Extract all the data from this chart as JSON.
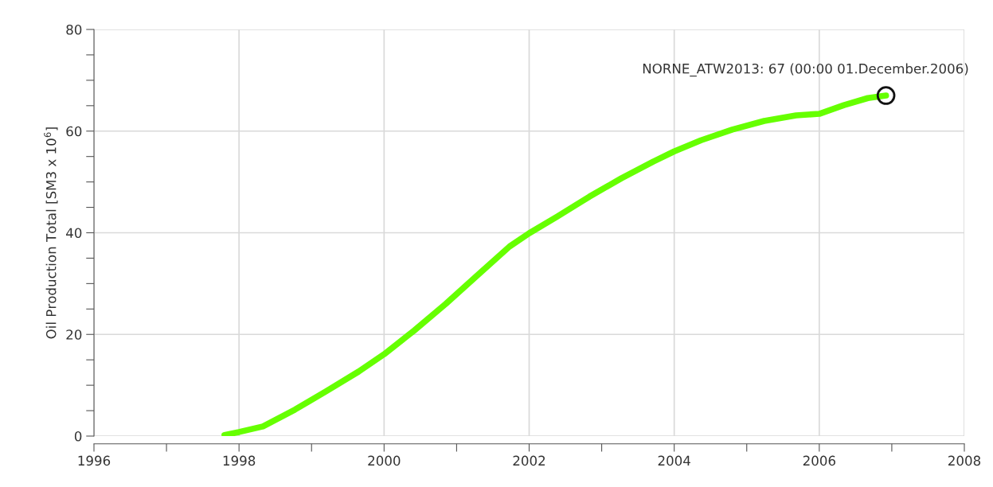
{
  "chart_data": {
    "type": "line",
    "ylabel": "Oil Production Total [SM3 x 10$^{6}$]",
    "x": [
      1997.8,
      1998.0,
      1998.33,
      1998.77,
      1999.2,
      1999.65,
      2000.0,
      2000.41,
      2000.85,
      2001.3,
      2001.73,
      2002.0,
      2002.39,
      2002.83,
      2003.27,
      2003.71,
      2004.0,
      2004.37,
      2004.8,
      2005.24,
      2005.68,
      2006.0,
      2006.34,
      2006.67,
      2006.92
    ],
    "series": [
      {
        "color": "#66ff00",
        "values": [
          0.2,
          0.8,
          1.9,
          5.2,
          8.8,
          12.7,
          16.1,
          20.7,
          26.0,
          31.8,
          37.3,
          39.9,
          43.2,
          47.1,
          50.7,
          54.0,
          56.0,
          58.2,
          60.3,
          62.0,
          63.1,
          63.4,
          65.1,
          66.5,
          67.0
        ]
      }
    ],
    "xlim": [
      1996,
      2008
    ],
    "xticks": [
      1996,
      {
        "value": 1997,
        "label": null
      },
      1998,
      {
        "value": 1999,
        "label": null
      },
      2000,
      {
        "value": 2001,
        "label": null
      },
      2002,
      {
        "value": 2003,
        "label": null
      },
      2004,
      {
        "value": 2005,
        "label": null
      },
      2006,
      {
        "value": 2007,
        "label": null
      },
      2008
    ],
    "ylim": [
      0,
      80
    ],
    "yticks": [
      0,
      {
        "value": 5,
        "label": null
      },
      {
        "value": 10,
        "label": null
      },
      {
        "value": 15,
        "label": null
      },
      20,
      {
        "value": 25,
        "label": null
      },
      {
        "value": 30,
        "label": null
      },
      {
        "value": 35,
        "label": null
      },
      40,
      {
        "value": 45,
        "label": null
      },
      {
        "value": 50,
        "label": null
      },
      {
        "value": 55,
        "label": null
      },
      60,
      {
        "value": 65,
        "label": null
      },
      {
        "value": 70,
        "label": null
      },
      {
        "value": 75,
        "label": null
      },
      80
    ],
    "grid": true,
    "marker": "none",
    "line_style": "solid",
    "annotations": [
      {
        "text": "NORNE_ATW2013: 67 (00:00 01.December.2006)",
        "x": 2006.92,
        "y": 67
      }
    ]
  }
}
